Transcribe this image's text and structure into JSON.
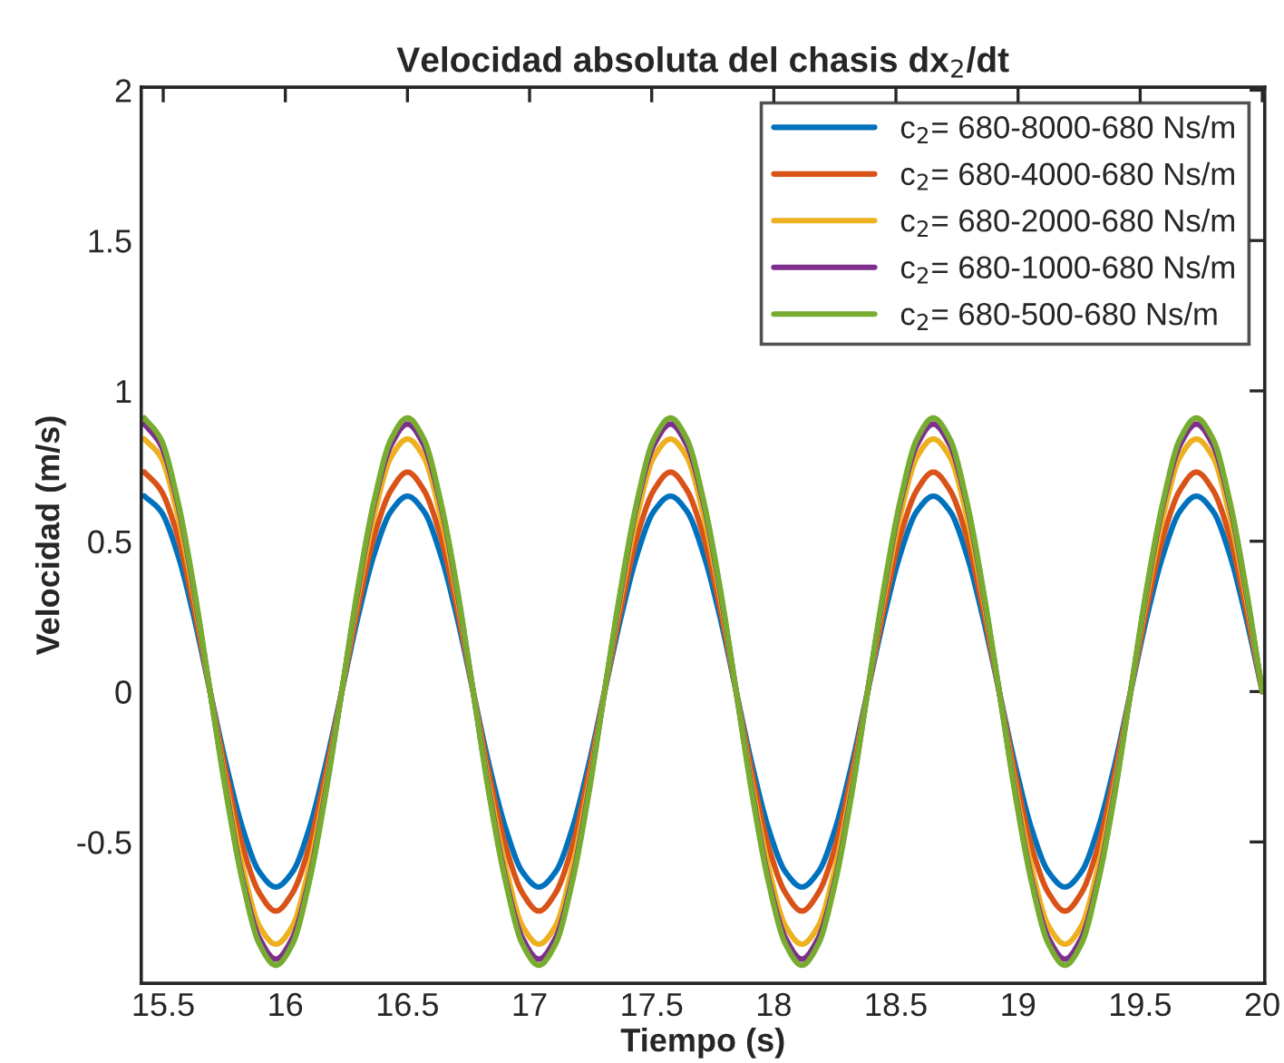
{
  "chart_data": {
    "type": "line",
    "title": "Velocidad absoluta del chasis dx$_{2}$/dt",
    "xlabel": "Tiempo (s)",
    "ylabel": "Velocidad (m/s)",
    "x": [
      15.423,
      15.49,
      15.558,
      15.625,
      15.692,
      15.76,
      15.827,
      15.894,
      15.961,
      16.029,
      16.096,
      16.163,
      16.231,
      16.298,
      16.365,
      16.433,
      16.5,
      16.567,
      16.634,
      16.702,
      16.769,
      16.836,
      16.904,
      16.971,
      17.038,
      17.106,
      17.173,
      17.24,
      17.307,
      17.375,
      17.442,
      17.509,
      17.577,
      17.644,
      17.711,
      17.779,
      17.846,
      17.913,
      17.98,
      18.048,
      18.115,
      18.182,
      18.25,
      18.317,
      18.384,
      18.452,
      18.519,
      18.586,
      18.653,
      18.721,
      18.788,
      18.855,
      18.923,
      18.99,
      19.057,
      19.125,
      19.192,
      19.259,
      19.326,
      19.394,
      19.461,
      19.528,
      19.596,
      19.663,
      19.73,
      19.798,
      19.865,
      19.932,
      20.0
    ],
    "series": [
      {
        "name": "c$_{2}$= 680-8000-680 Ns/m",
        "color": "#0072bd",
        "values": [
          0.65,
          0.6,
          0.46,
          0.25,
          0,
          -0.25,
          -0.46,
          -0.6,
          -0.65,
          -0.6,
          -0.46,
          -0.25,
          0,
          0.25,
          0.46,
          0.6,
          0.65,
          0.6,
          0.46,
          0.25,
          0,
          -0.25,
          -0.46,
          -0.6,
          -0.65,
          -0.6,
          -0.46,
          -0.25,
          0,
          0.25,
          0.46,
          0.6,
          0.65,
          0.6,
          0.46,
          0.25,
          0,
          -0.25,
          -0.46,
          -0.6,
          -0.65,
          -0.6,
          -0.46,
          -0.25,
          0,
          0.25,
          0.46,
          0.6,
          0.65,
          0.6,
          0.46,
          0.25,
          0,
          -0.25,
          -0.46,
          -0.6,
          -0.65,
          -0.6,
          -0.46,
          -0.25,
          0,
          0.25,
          0.46,
          0.6,
          0.65,
          0.6,
          0.46,
          0.25,
          0
        ]
      },
      {
        "name": "c$_{2}$= 680-4000-680 Ns/m",
        "color": "#d95319",
        "values": [
          0.73,
          0.67,
          0.52,
          0.28,
          0,
          -0.28,
          -0.52,
          -0.67,
          -0.73,
          -0.67,
          -0.52,
          -0.28,
          0,
          0.28,
          0.52,
          0.67,
          0.73,
          0.67,
          0.52,
          0.28,
          0,
          -0.28,
          -0.52,
          -0.67,
          -0.73,
          -0.67,
          -0.52,
          -0.28,
          0,
          0.28,
          0.52,
          0.67,
          0.73,
          0.67,
          0.52,
          0.28,
          0,
          -0.28,
          -0.52,
          -0.67,
          -0.73,
          -0.67,
          -0.52,
          -0.28,
          0,
          0.28,
          0.52,
          0.67,
          0.73,
          0.67,
          0.52,
          0.28,
          0,
          -0.28,
          -0.52,
          -0.67,
          -0.73,
          -0.67,
          -0.52,
          -0.28,
          0,
          0.28,
          0.52,
          0.67,
          0.73,
          0.67,
          0.52,
          0.28,
          0
        ]
      },
      {
        "name": "c$_{2}$= 680-2000-680 Ns/m",
        "color": "#edb120",
        "values": [
          0.84,
          0.78,
          0.59,
          0.32,
          0,
          -0.32,
          -0.59,
          -0.78,
          -0.84,
          -0.78,
          -0.59,
          -0.32,
          0,
          0.32,
          0.59,
          0.78,
          0.84,
          0.78,
          0.59,
          0.32,
          0,
          -0.32,
          -0.59,
          -0.78,
          -0.84,
          -0.78,
          -0.59,
          -0.32,
          0,
          0.32,
          0.59,
          0.78,
          0.84,
          0.78,
          0.59,
          0.32,
          0,
          -0.32,
          -0.59,
          -0.78,
          -0.84,
          -0.78,
          -0.59,
          -0.32,
          0,
          0.32,
          0.59,
          0.78,
          0.84,
          0.78,
          0.59,
          0.32,
          0,
          -0.32,
          -0.59,
          -0.78,
          -0.84,
          -0.78,
          -0.59,
          -0.32,
          0,
          0.32,
          0.59,
          0.78,
          0.84,
          0.78,
          0.59,
          0.32,
          0
        ]
      },
      {
        "name": "c$_{2}$= 680-1000-680 Ns/m",
        "color": "#7e2f8e",
        "values": [
          0.89,
          0.82,
          0.63,
          0.34,
          0,
          -0.34,
          -0.63,
          -0.82,
          -0.89,
          -0.82,
          -0.63,
          -0.34,
          0,
          0.34,
          0.63,
          0.82,
          0.89,
          0.82,
          0.63,
          0.34,
          0,
          -0.34,
          -0.63,
          -0.82,
          -0.89,
          -0.82,
          -0.63,
          -0.34,
          0,
          0.34,
          0.63,
          0.82,
          0.89,
          0.82,
          0.63,
          0.34,
          0,
          -0.34,
          -0.63,
          -0.82,
          -0.89,
          -0.82,
          -0.63,
          -0.34,
          0,
          0.34,
          0.63,
          0.82,
          0.89,
          0.82,
          0.63,
          0.34,
          0,
          -0.34,
          -0.63,
          -0.82,
          -0.89,
          -0.82,
          -0.63,
          -0.34,
          0,
          0.34,
          0.63,
          0.82,
          0.89,
          0.82,
          0.63,
          0.34,
          0
        ]
      },
      {
        "name": "c$_{2}$= 680-500-680 Ns/m",
        "color": "#77ac30",
        "values": [
          0.91,
          0.84,
          0.64,
          0.35,
          0,
          -0.35,
          -0.64,
          -0.84,
          -0.91,
          -0.84,
          -0.64,
          -0.35,
          0,
          0.35,
          0.64,
          0.84,
          0.91,
          0.84,
          0.64,
          0.35,
          0,
          -0.35,
          -0.64,
          -0.84,
          -0.91,
          -0.84,
          -0.64,
          -0.35,
          0,
          0.35,
          0.64,
          0.84,
          0.91,
          0.84,
          0.64,
          0.35,
          0,
          -0.35,
          -0.64,
          -0.84,
          -0.91,
          -0.84,
          -0.64,
          -0.35,
          0,
          0.35,
          0.64,
          0.84,
          0.91,
          0.84,
          0.64,
          0.35,
          0,
          -0.35,
          -0.64,
          -0.84,
          -0.91,
          -0.84,
          -0.64,
          -0.35,
          0,
          0.35,
          0.64,
          0.84,
          0.91,
          0.84,
          0.64,
          0.35,
          0
        ]
      }
    ],
    "xlim": [
      15.41,
      20.01
    ],
    "ylim": [
      -0.97,
      2.01
    ],
    "xticks": [
      15.5,
      16,
      16.5,
      17,
      17.5,
      18,
      18.5,
      19,
      19.5,
      20
    ],
    "yticks": [
      -0.5,
      0,
      0.5,
      1,
      1.5,
      2
    ],
    "legend": "top right",
    "grid": false,
    "marker": "none",
    "line_style": "solid"
  }
}
